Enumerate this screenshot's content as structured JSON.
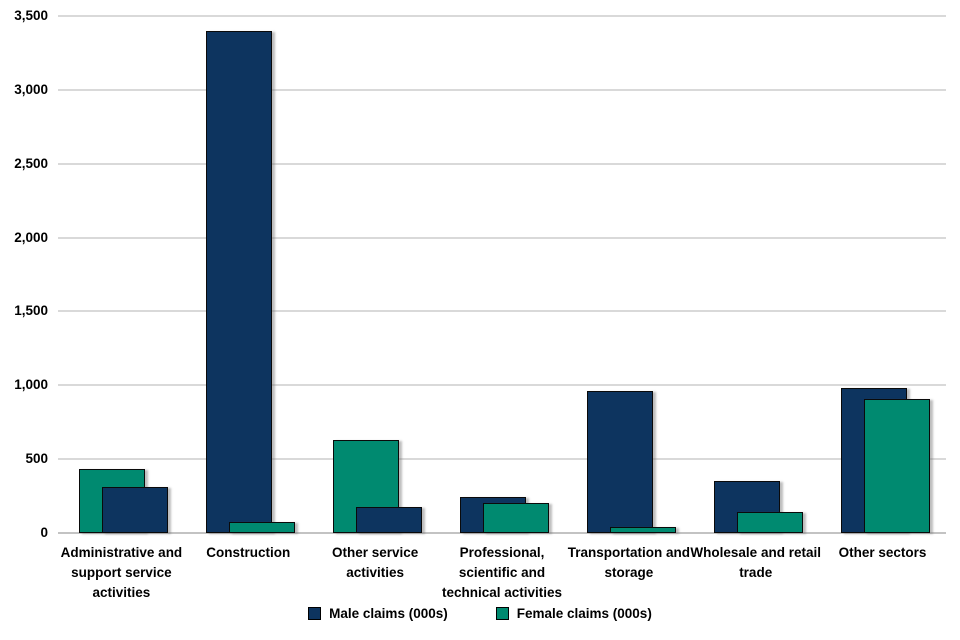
{
  "chart_data": {
    "type": "bar",
    "title": "",
    "subtitle": "",
    "categories": [
      "Administrative and support service activities",
      "Construction",
      "Other service activities",
      "Professional, scientific and technical activities",
      "Transportation and storage",
      "Wholesale and retail trade",
      "Other sectors"
    ],
    "category_label_lines": [
      [
        "Administrative and",
        "support service",
        "activities"
      ],
      [
        "Construction"
      ],
      [
        "Other service",
        "activities"
      ],
      [
        "Professional,",
        "scientific and",
        "technical activities"
      ],
      [
        "Transportation and",
        "storage"
      ],
      [
        "Wholesale and retail",
        "trade"
      ],
      [
        "Other sectors"
      ]
    ],
    "series": [
      {
        "name": "Male claims (000s)",
        "color": "#0d345f",
        "values": [
          310,
          3400,
          175,
          245,
          960,
          355,
          985
        ]
      },
      {
        "name": "Female claims (000s)",
        "color": "#008a70",
        "values": [
          435,
          75,
          630,
          205,
          40,
          140,
          910
        ]
      }
    ],
    "xlabel": "",
    "ylabel": "",
    "ylim": [
      0,
      3500
    ],
    "ytick_step": 500,
    "ytick_labels": [
      "0",
      "500",
      "1,000",
      "1,500",
      "2,000",
      "2,500",
      "3,000",
      "3,500"
    ],
    "grid": "horizontal-only",
    "legend_position": "bottom-center",
    "bar_layout": "overlapped pairs; taller bar behind offset left, shorter bar in front offset right"
  },
  "legend": {
    "items": [
      {
        "label": "Male claims (000s)",
        "color": "#0d345f"
      },
      {
        "label": "Female claims (000s)",
        "color": "#008a70"
      }
    ]
  },
  "colors": {
    "male": "#0d345f",
    "female": "#008a70",
    "gridline": "#d9d9d9",
    "axis_line": "#c3c3c3",
    "text": "#000000",
    "bar_border": "#0a0a0a",
    "background": "#ffffff"
  }
}
